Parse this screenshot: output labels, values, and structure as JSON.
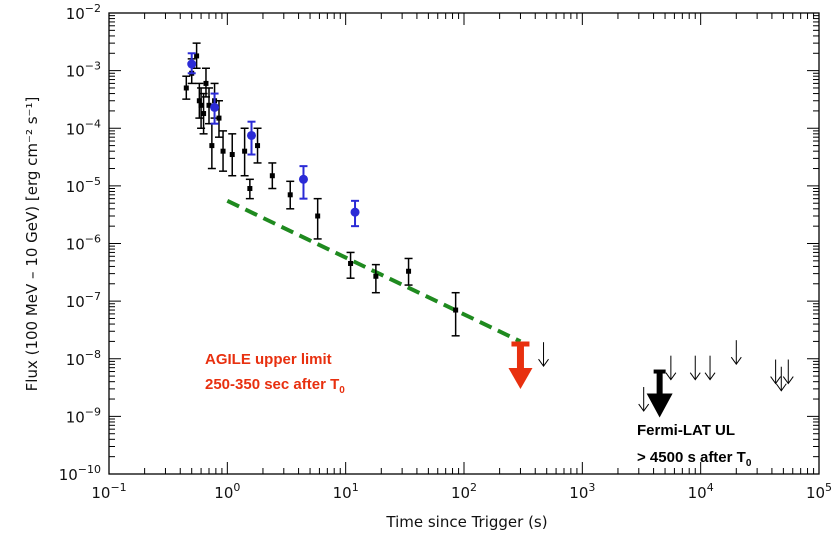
{
  "chart_data": {
    "type": "scatter",
    "title": "",
    "xlabel": "Time since Trigger (s)",
    "ylabel": "Flux (100 MeV – 10 GeV) [erg cm⁻² s⁻¹]",
    "xscale": "log",
    "yscale": "log",
    "xlim": [
      0.1,
      100000
    ],
    "ylim": [
      1e-10,
      0.01
    ],
    "xtick_exponents": [
      -1,
      0,
      1,
      2,
      3,
      4,
      5
    ],
    "ytick_exponents": [
      -10,
      -9,
      -8,
      -7,
      -6,
      -5,
      -4,
      -3,
      -2
    ],
    "grid": false,
    "colors": {
      "black_series": "#000000",
      "blue_series": "#2b2bd6",
      "trend": "#1f8a1f",
      "agile_ul": "#e8300f",
      "fermi_ul": "#000000"
    },
    "series": [
      {
        "marker": "square",
        "color": "#000000",
        "points": [
          {
            "x": 0.45,
            "y": 0.0005,
            "ylo": 0.00032,
            "yhi": 0.0008
          },
          {
            "x": 0.5,
            "y": 0.0009,
            "ylo": 0.0006,
            "yhi": 0.0016
          },
          {
            "x": 0.55,
            "y": 0.0018,
            "ylo": 0.0011,
            "yhi": 0.003
          },
          {
            "x": 0.58,
            "y": 0.0003,
            "ylo": 0.00015,
            "yhi": 0.0006
          },
          {
            "x": 0.6,
            "y": 0.00025,
            "ylo": 0.0001,
            "yhi": 0.0005
          },
          {
            "x": 0.63,
            "y": 0.00018,
            "ylo": 8e-05,
            "yhi": 0.0004
          },
          {
            "x": 0.66,
            "y": 0.0006,
            "ylo": 0.00035,
            "yhi": 0.0011
          },
          {
            "x": 0.7,
            "y": 0.00025,
            "ylo": 0.00012,
            "yhi": 0.0005
          },
          {
            "x": 0.74,
            "y": 5e-05,
            "ylo": 2e-05,
            "yhi": 0.00012
          },
          {
            "x": 0.78,
            "y": 0.0003,
            "ylo": 0.00015,
            "yhi": 0.0006
          },
          {
            "x": 0.85,
            "y": 0.00015,
            "ylo": 7e-05,
            "yhi": 0.0003
          },
          {
            "x": 0.92,
            "y": 4e-05,
            "ylo": 1.8e-05,
            "yhi": 9e-05
          },
          {
            "x": 1.1,
            "y": 3.5e-05,
            "ylo": 1.5e-05,
            "yhi": 8e-05
          },
          {
            "x": 1.4,
            "y": 4e-05,
            "ylo": 1.5e-05,
            "yhi": 0.0001
          },
          {
            "x": 1.55,
            "y": 9e-06,
            "ylo": 6e-06,
            "yhi": 1.3e-05
          },
          {
            "x": 1.8,
            "y": 5e-05,
            "ylo": 2.5e-05,
            "yhi": 0.0001
          },
          {
            "x": 2.4,
            "y": 1.5e-05,
            "ylo": 9e-06,
            "yhi": 2.5e-05
          },
          {
            "x": 3.4,
            "y": 7e-06,
            "ylo": 4e-06,
            "yhi": 1.2e-05
          },
          {
            "x": 5.8,
            "y": 3e-06,
            "ylo": 1.2e-06,
            "yhi": 6e-06
          },
          {
            "x": 11,
            "y": 4.5e-07,
            "ylo": 2.5e-07,
            "yhi": 7e-07
          },
          {
            "x": 18,
            "y": 2.7e-07,
            "ylo": 1.4e-07,
            "yhi": 4.3e-07
          },
          {
            "x": 34,
            "y": 3.3e-07,
            "ylo": 1.9e-07,
            "yhi": 5.5e-07
          },
          {
            "x": 85,
            "y": 7e-08,
            "ylo": 2.5e-08,
            "yhi": 1.4e-07
          }
        ]
      },
      {
        "marker": "circle",
        "color": "#2b2bd6",
        "points": [
          {
            "x": 0.5,
            "y": 0.0013,
            "ylo": 0.0009,
            "yhi": 0.002
          },
          {
            "x": 0.78,
            "y": 0.00023,
            "ylo": 0.00012,
            "yhi": 0.0004
          },
          {
            "x": 1.6,
            "y": 7.5e-05,
            "ylo": 3.5e-05,
            "yhi": 0.00013
          },
          {
            "x": 4.4,
            "y": 1.3e-05,
            "ylo": 6e-06,
            "yhi": 2.2e-05
          },
          {
            "x": 12,
            "y": 3.5e-06,
            "ylo": 2e-06,
            "yhi": 5.5e-06
          }
        ]
      }
    ],
    "trend_line": {
      "x": [
        1.0,
        300
      ],
      "y": [
        5.5e-06,
        2e-08
      ],
      "style": "dashed",
      "color": "#1f8a1f"
    },
    "upper_limits_small": [
      {
        "x": 470,
        "y": 1.2e-08
      },
      {
        "x": 3300,
        "y": 2e-09
      },
      {
        "x": 5600,
        "y": 7e-09
      },
      {
        "x": 9000,
        "y": 7e-09
      },
      {
        "x": 12000,
        "y": 7e-09
      },
      {
        "x": 20000,
        "y": 1.3e-08
      },
      {
        "x": 43000,
        "y": 6e-09
      },
      {
        "x": 48000,
        "y": 4.5e-09
      },
      {
        "x": 55000,
        "y": 6e-09
      }
    ],
    "agile_ul": {
      "x": 300,
      "y": 1.8e-08,
      "color": "#e8300f"
    },
    "fermi_ul": {
      "x": 4500,
      "y": 6e-09,
      "color": "#000000"
    },
    "annotations": {
      "agile_line1": "AGILE upper limit",
      "agile_line2": "250-350 sec after T",
      "agile_sub": "0",
      "fermi_line1": "Fermi-LAT UL",
      "fermi_line2": "> 4500 s after T",
      "fermi_sub": "0"
    }
  }
}
